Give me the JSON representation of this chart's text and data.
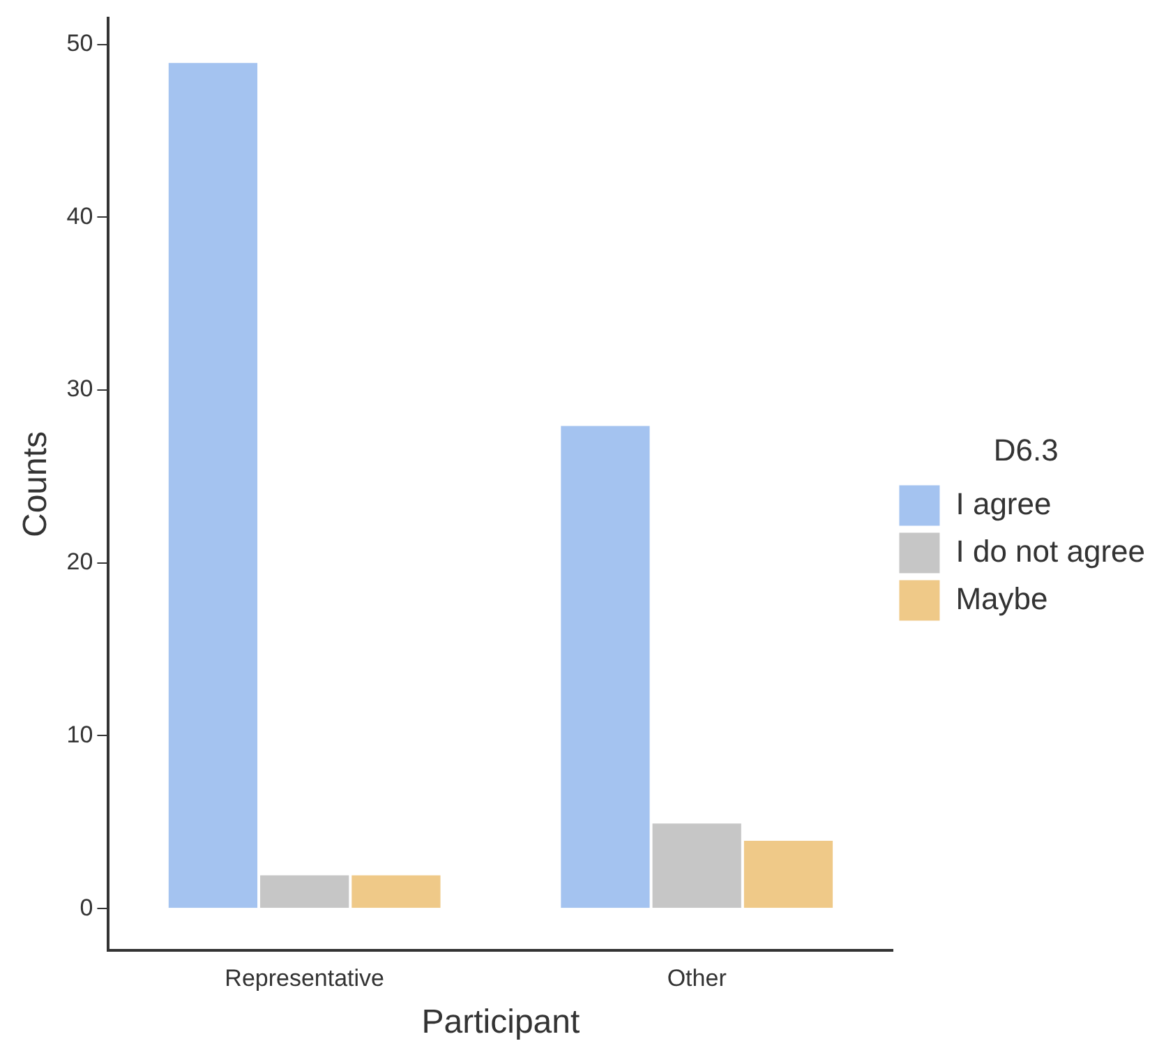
{
  "chart_data": {
    "type": "bar",
    "xlabel": "Participant",
    "ylabel": "Counts",
    "legend_title": "D6.3",
    "categories": [
      "Representative",
      "Other"
    ],
    "series": [
      {
        "name": "I agree",
        "color": "#a4c3f0",
        "values": [
          49,
          28
        ]
      },
      {
        "name": "I do not agree",
        "color": "#c6c6c6",
        "values": [
          2,
          5
        ]
      },
      {
        "name": "Maybe",
        "color": "#efc988",
        "values": [
          2,
          4
        ]
      }
    ],
    "ylim": [
      -2.4,
      51.5
    ],
    "yticks": [
      0,
      10,
      20,
      30,
      40,
      50
    ],
    "grid": false,
    "legend": "right"
  }
}
